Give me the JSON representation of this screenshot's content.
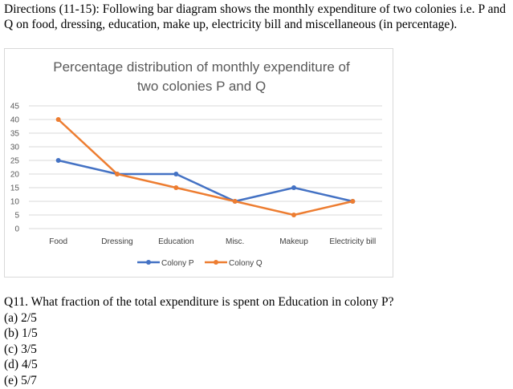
{
  "directions": "Directions (11-15): Following bar diagram shows the monthly expenditure of two colonies i.e. P and Q on food, dressing, education, make up, electricity bill and miscellaneous (in percentage).",
  "chart_data": {
    "type": "line",
    "title_lines": [
      "Percentage distribution of monthly expenditure of",
      "two colonies P and Q"
    ],
    "categories": [
      "Food",
      "Dressing",
      "Education",
      "Misc.",
      "Makeup",
      "Electricity bill"
    ],
    "series": [
      {
        "name": "Colony P",
        "values": [
          25,
          20,
          20,
          10,
          15,
          10
        ],
        "color": "#4472c4"
      },
      {
        "name": "Colony Q",
        "values": [
          40,
          20,
          15,
          10,
          5,
          10
        ],
        "color": "#ed7d31"
      }
    ],
    "yticks": [
      0,
      5,
      10,
      15,
      20,
      25,
      30,
      35,
      40,
      45
    ],
    "ylim": [
      0,
      45
    ],
    "grid": true,
    "legend": "bottom"
  },
  "question": {
    "text": "Q11. What fraction of the total expenditure is spent on Education in colony P?",
    "options": [
      "(a) 2/5",
      "(b) 1/5",
      "(c) 3/5",
      "(d) 4/5",
      "(e) 5/7"
    ]
  }
}
